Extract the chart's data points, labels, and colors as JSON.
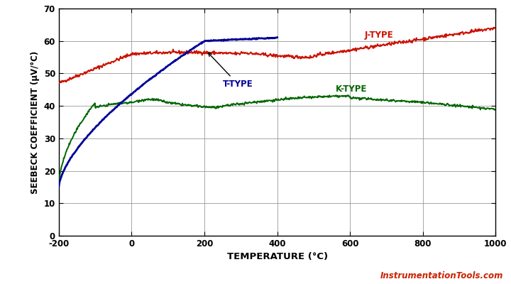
{
  "xlabel": "TEMPERATURE (°C)",
  "ylabel": "SEEBECK COEFFICIENT (µV/°C)",
  "xlim": [
    -200,
    1000
  ],
  "ylim": [
    0,
    70
  ],
  "xticks": [
    -200,
    0,
    200,
    400,
    600,
    800,
    1000
  ],
  "yticks": [
    0,
    10,
    20,
    30,
    40,
    50,
    60,
    70
  ],
  "background_color": "#ffffff",
  "grid_color": "#999999",
  "watermark": "InstrumentationTools.com",
  "watermark_color": "#cc2200",
  "j_type_color": "#cc1100",
  "t_type_color": "#000099",
  "k_type_color": "#006600",
  "label_j_color": "#cc1100",
  "label_t_color": "#000099",
  "label_k_color": "#006600"
}
